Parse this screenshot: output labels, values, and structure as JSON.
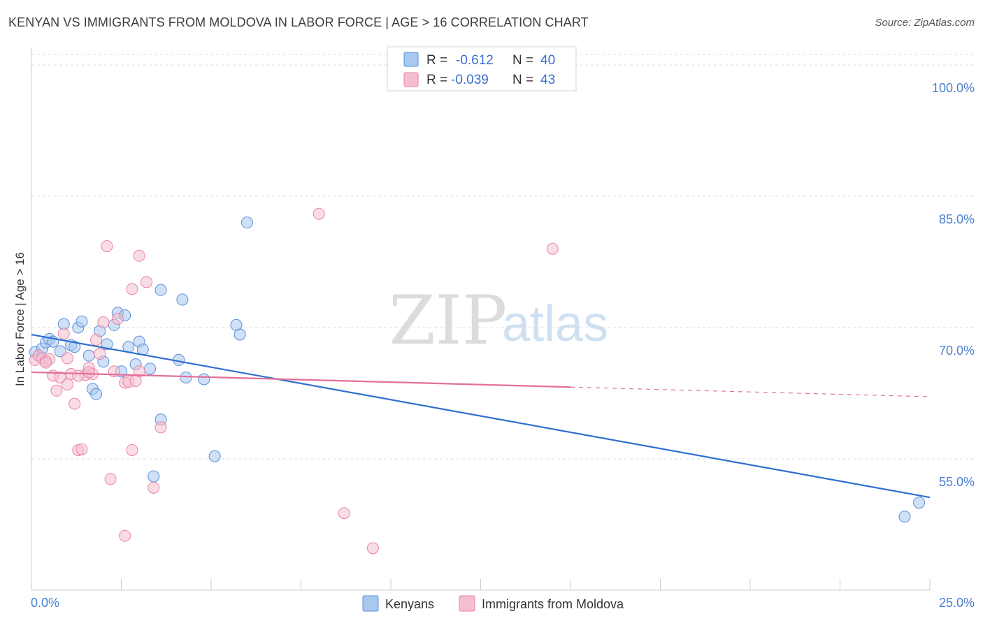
{
  "header": {
    "title": "KENYAN VS IMMIGRANTS FROM MOLDOVA IN LABOR FORCE | AGE > 16 CORRELATION CHART",
    "source": "Source: ZipAtlas.com"
  },
  "watermark": {
    "zip": "ZIP",
    "atlas": "atlas"
  },
  "colors": {
    "kenyans_fill": "#a9c8f0",
    "kenyans_stroke": "#5b8fd6",
    "kenyans_line": "#2f6fd1",
    "moldova_fill": "#f6bfd0",
    "moldova_stroke": "#e884a6",
    "moldova_line": "#e46f98",
    "grid": "#dddddd"
  },
  "legend": {
    "rows": [
      {
        "r_label": "R =",
        "r_value": "-0.612",
        "n_label": "N =",
        "n_value": "40"
      },
      {
        "r_label": "R =",
        "r_value": "-0.039",
        "n_label": "N =",
        "n_value": "43"
      }
    ]
  },
  "chart_data": {
    "type": "scatter",
    "title": "KENYAN VS IMMIGRANTS FROM MOLDOVA IN LABOR FORCE | AGE > 16 CORRELATION CHART",
    "xlabel": "",
    "ylabel": "In Labor Force | Age > 16",
    "xlim": [
      0,
      25
    ],
    "ylim": [
      40,
      102
    ],
    "x_tick_labels": [
      "0.0%",
      "25.0%"
    ],
    "y_ticks": [
      55,
      70,
      85,
      100
    ],
    "y_tick_labels": [
      "55.0%",
      "70.0%",
      "85.0%",
      "100.0%"
    ],
    "grid": true,
    "legend_position": "top-center",
    "series": [
      {
        "name": "Kenyans",
        "points": [
          [
            0.1,
            67.2
          ],
          [
            0.2,
            66.8
          ],
          [
            0.3,
            67.6
          ],
          [
            0.4,
            68.3
          ],
          [
            0.5,
            68.7
          ],
          [
            0.6,
            68.4
          ],
          [
            0.8,
            67.3
          ],
          [
            0.9,
            70.4
          ],
          [
            1.1,
            68.0
          ],
          [
            1.2,
            67.8
          ],
          [
            1.3,
            70.0
          ],
          [
            1.4,
            70.7
          ],
          [
            1.6,
            66.8
          ],
          [
            1.7,
            63.0
          ],
          [
            1.8,
            62.4
          ],
          [
            1.9,
            69.6
          ],
          [
            2.0,
            66.1
          ],
          [
            2.1,
            68.1
          ],
          [
            2.3,
            70.3
          ],
          [
            2.4,
            71.7
          ],
          [
            2.5,
            65.0
          ],
          [
            2.6,
            71.4
          ],
          [
            2.7,
            67.8
          ],
          [
            2.9,
            65.8
          ],
          [
            3.0,
            68.4
          ],
          [
            3.1,
            67.5
          ],
          [
            3.3,
            65.3
          ],
          [
            3.6,
            74.3
          ],
          [
            3.6,
            59.5
          ],
          [
            3.4,
            53.0
          ],
          [
            4.1,
            66.3
          ],
          [
            4.2,
            73.2
          ],
          [
            4.3,
            64.3
          ],
          [
            4.8,
            64.1
          ],
          [
            5.1,
            55.3
          ],
          [
            5.7,
            70.3
          ],
          [
            5.8,
            69.2
          ],
          [
            6.0,
            82.0
          ],
          [
            24.3,
            48.4
          ],
          [
            24.7,
            50.0
          ]
        ],
        "trend": {
          "x": [
            0.0,
            25.0
          ],
          "y": [
            69.2,
            50.6
          ],
          "dashed_from": null
        }
      },
      {
        "name": "Immigrants from Moldova",
        "points": [
          [
            0.1,
            66.3
          ],
          [
            0.2,
            66.8
          ],
          [
            0.3,
            66.5
          ],
          [
            0.4,
            66.2
          ],
          [
            0.5,
            66.4
          ],
          [
            0.6,
            64.5
          ],
          [
            0.7,
            62.8
          ],
          [
            0.8,
            64.3
          ],
          [
            0.9,
            69.3
          ],
          [
            1.0,
            63.5
          ],
          [
            1.1,
            64.7
          ],
          [
            1.2,
            61.3
          ],
          [
            1.3,
            56.0
          ],
          [
            1.4,
            56.1
          ],
          [
            1.5,
            64.6
          ],
          [
            1.6,
            65.4
          ],
          [
            1.7,
            64.7
          ],
          [
            1.8,
            68.6
          ],
          [
            1.9,
            67.0
          ],
          [
            2.0,
            70.6
          ],
          [
            2.1,
            79.3
          ],
          [
            2.2,
            52.7
          ],
          [
            2.3,
            65.0
          ],
          [
            2.4,
            71.0
          ],
          [
            2.6,
            63.7
          ],
          [
            2.7,
            63.8
          ],
          [
            2.8,
            74.4
          ],
          [
            3.0,
            78.2
          ],
          [
            2.6,
            46.2
          ],
          [
            2.8,
            56.0
          ],
          [
            3.0,
            65.0
          ],
          [
            3.2,
            75.2
          ],
          [
            3.4,
            51.7
          ],
          [
            3.6,
            58.6
          ],
          [
            8.0,
            83.0
          ],
          [
            8.7,
            48.8
          ],
          [
            9.5,
            44.8
          ],
          [
            14.5,
            79.0
          ],
          [
            1.0,
            66.5
          ],
          [
            1.3,
            64.5
          ],
          [
            0.4,
            66.0
          ],
          [
            2.9,
            63.9
          ],
          [
            1.6,
            64.9
          ]
        ],
        "trend": {
          "x": [
            0.0,
            15.0,
            25.0
          ],
          "y": [
            64.9,
            63.2,
            62.1
          ],
          "dashed_from": 15.0
        }
      }
    ]
  },
  "bottom_legend": {
    "items": [
      {
        "label": "Kenyans"
      },
      {
        "label": "Immigrants from Moldova"
      }
    ]
  }
}
